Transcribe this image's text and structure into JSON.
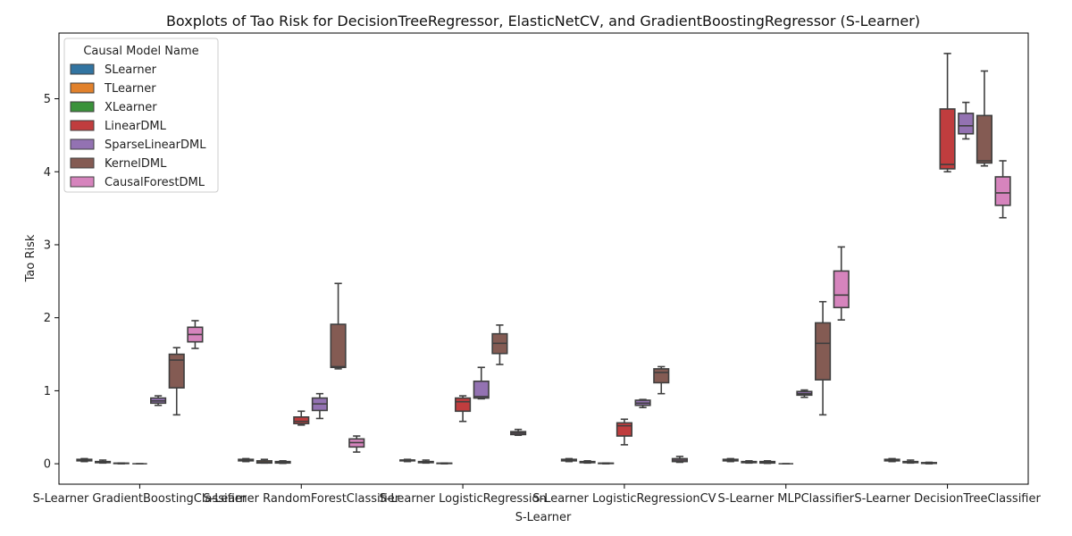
{
  "chart_data": {
    "type": "boxplot",
    "title": "Boxplots of Tao Risk for DecisionTreeRegressor, ElasticNetCV, and GradientBoostingRegressor (S-Learner)",
    "xlabel": "S-Learner",
    "ylabel": "Tao Risk",
    "ylim": [
      -0.28,
      5.9
    ],
    "yticks": [
      0,
      1,
      2,
      3,
      4,
      5
    ],
    "grid": false,
    "legend": {
      "title": "Causal Model Name",
      "placement": "top-left",
      "entries": [
        "SLearner",
        "TLearner",
        "XLearner",
        "LinearDML",
        "SparseLinearDML",
        "KernelDML",
        "CausalForestDML"
      ]
    },
    "series_colors": [
      "#3274a1",
      "#e1812c",
      "#3a923a",
      "#c03d3e",
      "#9372b2",
      "#845b53",
      "#d684bd"
    ],
    "categories": [
      "S-Learner GradientBoostingClassifier",
      "S-Learner RandomForestClassifier",
      "S-Learner LogisticRegression",
      "S-Learner LogisticRegressionCV",
      "S-Learner MLPClassifier",
      "S-Learner DecisionTreeClassifier"
    ],
    "series": [
      {
        "name": "SLearner",
        "boxes": [
          {
            "min": 0.03,
            "q1": 0.04,
            "median": 0.05,
            "q3": 0.06,
            "max": 0.07
          },
          {
            "min": 0.03,
            "q1": 0.04,
            "median": 0.05,
            "q3": 0.06,
            "max": 0.07
          },
          {
            "min": 0.03,
            "q1": 0.04,
            "median": 0.05,
            "q3": 0.05,
            "max": 0.06
          },
          {
            "min": 0.03,
            "q1": 0.04,
            "median": 0.05,
            "q3": 0.06,
            "max": 0.07
          },
          {
            "min": 0.03,
            "q1": 0.04,
            "median": 0.05,
            "q3": 0.06,
            "max": 0.07
          },
          {
            "min": 0.03,
            "q1": 0.04,
            "median": 0.05,
            "q3": 0.06,
            "max": 0.07
          }
        ]
      },
      {
        "name": "TLearner",
        "boxes": [
          {
            "min": 0.01,
            "q1": 0.015,
            "median": 0.02,
            "q3": 0.03,
            "max": 0.05
          },
          {
            "min": 0.01,
            "q1": 0.01,
            "median": 0.02,
            "q3": 0.04,
            "max": 0.06
          },
          {
            "min": 0.01,
            "q1": 0.015,
            "median": 0.02,
            "q3": 0.03,
            "max": 0.05
          },
          {
            "min": 0.01,
            "q1": 0.015,
            "median": 0.02,
            "q3": 0.03,
            "max": 0.04
          },
          {
            "min": 0.01,
            "q1": 0.015,
            "median": 0.02,
            "q3": 0.03,
            "max": 0.04
          },
          {
            "min": 0.01,
            "q1": 0.015,
            "median": 0.02,
            "q3": 0.03,
            "max": 0.05
          }
        ]
      },
      {
        "name": "XLearner",
        "boxes": [
          {
            "min": 0.0,
            "q1": 0.003,
            "median": 0.005,
            "q3": 0.008,
            "max": 0.01
          },
          {
            "min": 0.005,
            "q1": 0.01,
            "median": 0.02,
            "q3": 0.03,
            "max": 0.04
          },
          {
            "min": 0.0,
            "q1": 0.003,
            "median": 0.005,
            "q3": 0.008,
            "max": 0.01
          },
          {
            "min": 0.0,
            "q1": 0.003,
            "median": 0.005,
            "q3": 0.008,
            "max": 0.01
          },
          {
            "min": 0.005,
            "q1": 0.01,
            "median": 0.02,
            "q3": 0.03,
            "max": 0.04
          },
          {
            "min": 0.0,
            "q1": 0.005,
            "median": 0.01,
            "q3": 0.015,
            "max": 0.02
          }
        ]
      },
      {
        "name": "LinearDML",
        "boxes": [
          {
            "min": 0.0,
            "q1": 0.0,
            "median": 0.0,
            "q3": 0.0,
            "max": 0.0
          },
          {
            "min": 0.53,
            "q1": 0.55,
            "median": 0.58,
            "q3": 0.64,
            "max": 0.72
          },
          {
            "min": 0.58,
            "q1": 0.72,
            "median": 0.85,
            "q3": 0.9,
            "max": 0.93
          },
          {
            "min": 0.26,
            "q1": 0.38,
            "median": 0.52,
            "q3": 0.56,
            "max": 0.61
          },
          {
            "min": 0.0,
            "q1": 0.0,
            "median": 0.0,
            "q3": 0.0,
            "max": 0.0
          },
          {
            "min": 4.0,
            "q1": 4.04,
            "median": 4.1,
            "q3": 4.86,
            "max": 5.62
          }
        ]
      },
      {
        "name": "SparseLinearDML",
        "boxes": [
          {
            "min": 0.8,
            "q1": 0.83,
            "median": 0.86,
            "q3": 0.9,
            "max": 0.93
          },
          {
            "min": 0.62,
            "q1": 0.73,
            "median": 0.82,
            "q3": 0.9,
            "max": 0.96
          },
          {
            "min": 0.89,
            "q1": 0.9,
            "median": 0.92,
            "q3": 1.13,
            "max": 1.32
          },
          {
            "min": 0.77,
            "q1": 0.8,
            "median": 0.83,
            "q3": 0.87,
            "max": 0.88
          },
          {
            "min": 0.91,
            "q1": 0.94,
            "median": 0.96,
            "q3": 0.99,
            "max": 1.01
          },
          {
            "min": 4.45,
            "q1": 4.52,
            "median": 4.63,
            "q3": 4.8,
            "max": 4.95
          }
        ]
      },
      {
        "name": "KernelDML",
        "boxes": [
          {
            "min": 0.67,
            "q1": 1.04,
            "median": 1.42,
            "q3": 1.5,
            "max": 1.59
          },
          {
            "min": 1.3,
            "q1": 1.32,
            "median": 1.33,
            "q3": 1.91,
            "max": 2.47
          },
          {
            "min": 1.36,
            "q1": 1.51,
            "median": 1.65,
            "q3": 1.78,
            "max": 1.9
          },
          {
            "min": 0.96,
            "q1": 1.11,
            "median": 1.25,
            "q3": 1.3,
            "max": 1.33
          },
          {
            "min": 0.67,
            "q1": 1.15,
            "median": 1.65,
            "q3": 1.93,
            "max": 2.22
          },
          {
            "min": 4.08,
            "q1": 4.12,
            "median": 4.15,
            "q3": 4.77,
            "max": 5.38
          }
        ]
      },
      {
        "name": "CausalForestDML",
        "boxes": [
          {
            "min": 1.58,
            "q1": 1.67,
            "median": 1.77,
            "q3": 1.87,
            "max": 1.96
          },
          {
            "min": 0.16,
            "q1": 0.23,
            "median": 0.29,
            "q3": 0.34,
            "max": 0.38
          },
          {
            "min": 0.39,
            "q1": 0.4,
            "median": 0.42,
            "q3": 0.44,
            "max": 0.47
          },
          {
            "min": 0.02,
            "q1": 0.03,
            "median": 0.05,
            "q3": 0.07,
            "max": 0.1
          },
          {
            "min": 1.97,
            "q1": 2.14,
            "median": 2.31,
            "q3": 2.64,
            "max": 2.97
          },
          {
            "min": 3.37,
            "q1": 3.54,
            "median": 3.71,
            "q3": 3.93,
            "max": 4.15
          }
        ]
      }
    ]
  }
}
